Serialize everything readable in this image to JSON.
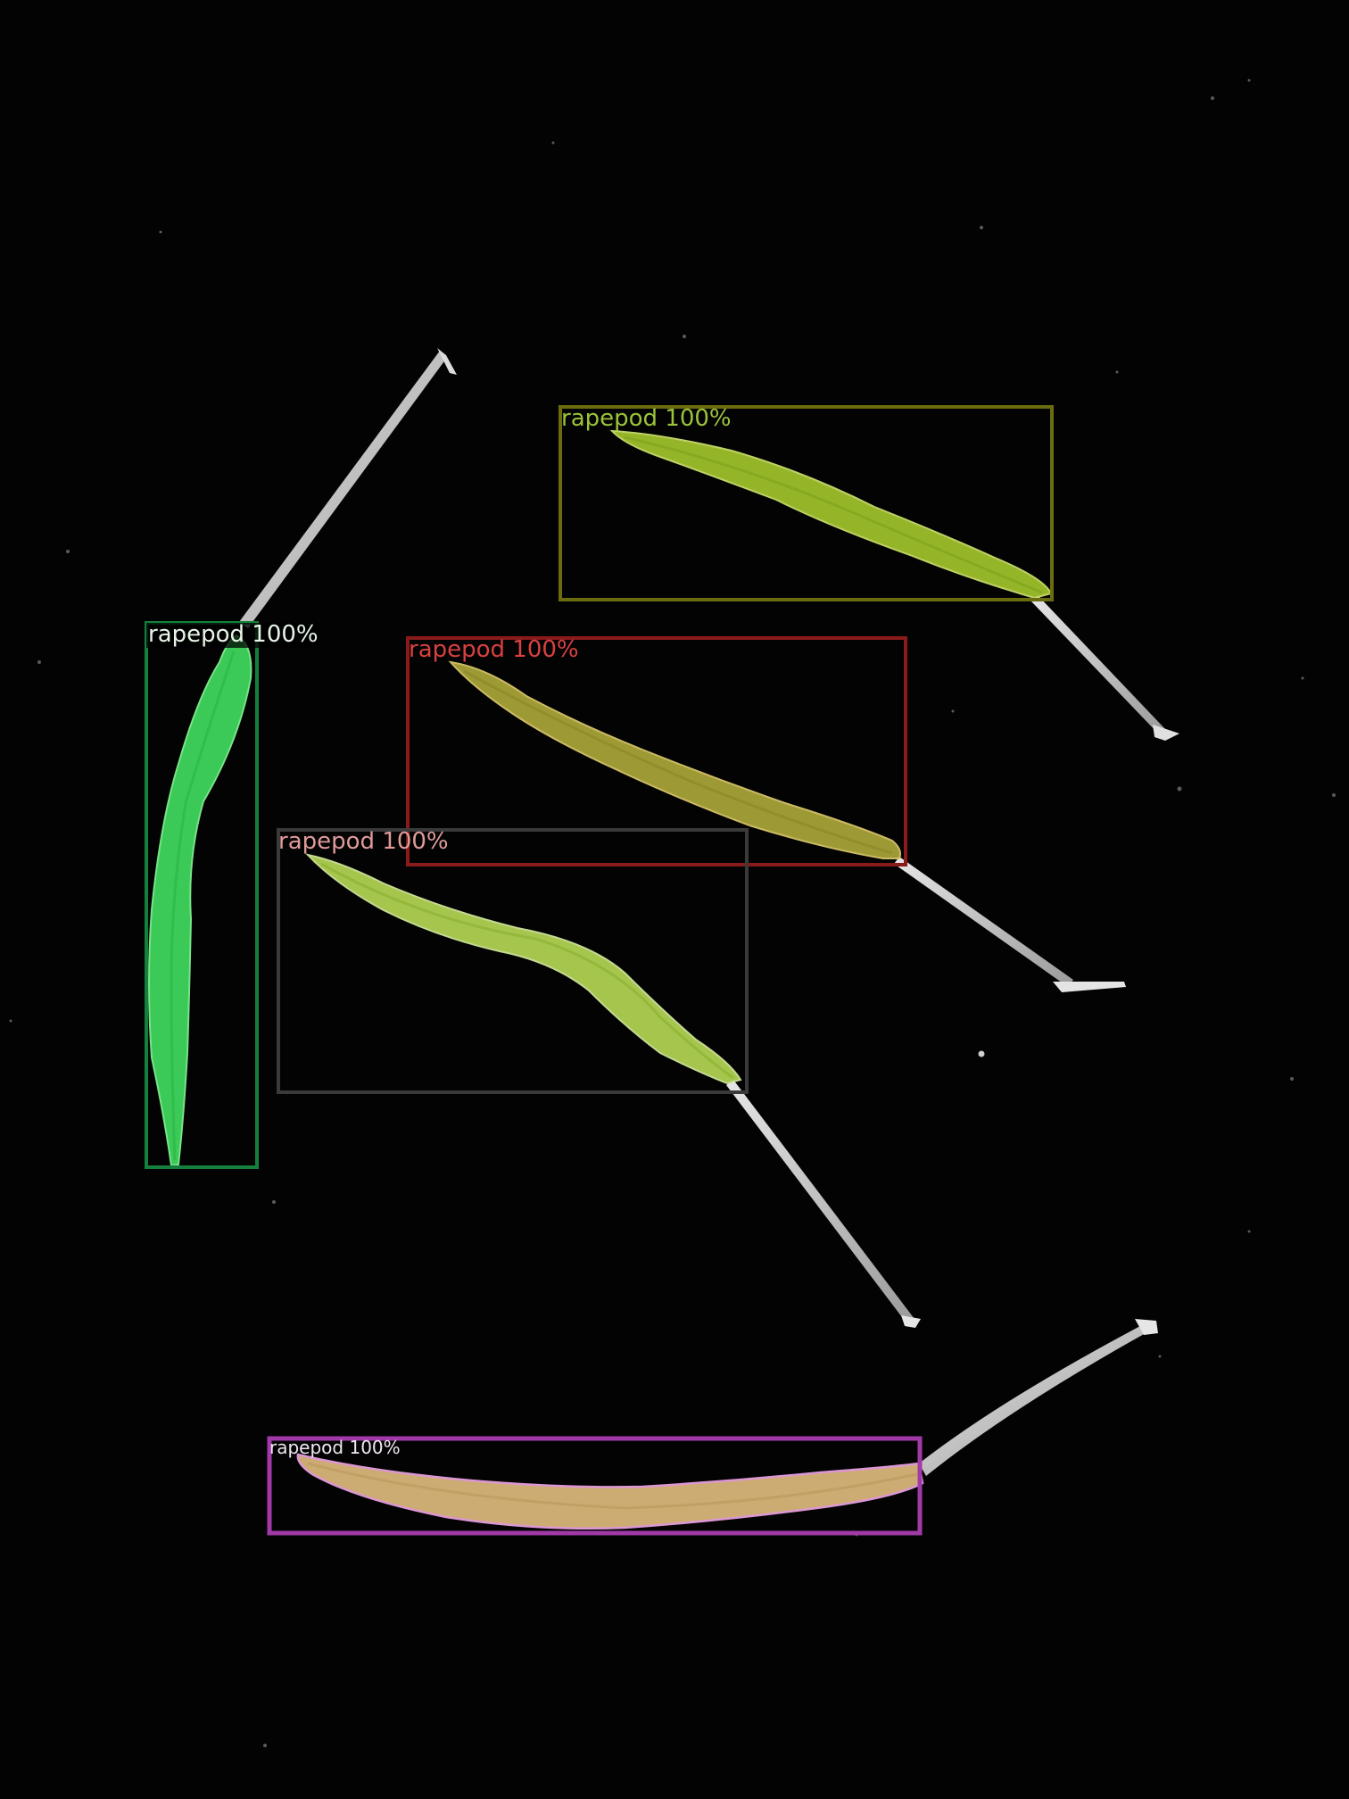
{
  "image": {
    "background": "#030303",
    "subject": "rapeseed pods with instance-segmentation overlays"
  },
  "detections": [
    {
      "label": "rapepod 100%",
      "color": "#15803d",
      "fill": "#22e04a"
    },
    {
      "label": "rapepod 100%",
      "color": "#6b6b10",
      "fill": "#b8d641"
    },
    {
      "label": "rapepod 100%",
      "color": "#8b1a1a",
      "fill": "#c4b84a"
    },
    {
      "label": "rapepod 100%",
      "color": "#3a3a3a",
      "fill": "#c2de5c"
    },
    {
      "label": "rapepod 100%",
      "color": "#a13aa8",
      "fill": "#e8c289"
    }
  ]
}
